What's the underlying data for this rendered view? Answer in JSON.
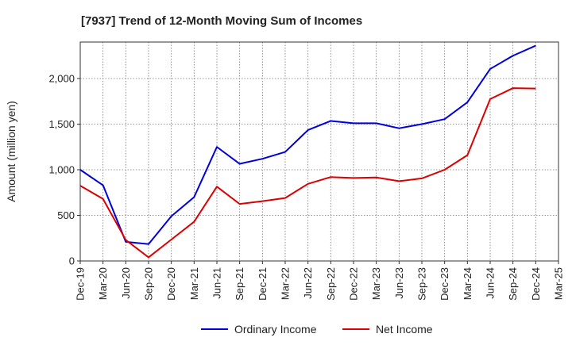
{
  "chart_data": {
    "type": "line",
    "title": "[7937]  Trend of 12-Month Moving Sum of Incomes",
    "xlabel": "",
    "ylabel": "Amount (million yen)",
    "categories": [
      "Dec-19",
      "Mar-20",
      "Jun-20",
      "Sep-20",
      "Dec-20",
      "Mar-21",
      "Jun-21",
      "Sep-21",
      "Dec-21",
      "Mar-22",
      "Jun-22",
      "Sep-22",
      "Dec-22",
      "Mar-23",
      "Jun-23",
      "Sep-23",
      "Dec-23",
      "Mar-24",
      "Jun-24",
      "Sep-24",
      "Dec-24",
      "Mar-25"
    ],
    "ylim": [
      0,
      2400
    ],
    "yticks": [
      0,
      500,
      1000,
      1500,
      2000
    ],
    "ytick_labels": [
      "0",
      "500",
      "1,000",
      "1,500",
      "2,000"
    ],
    "grid": true,
    "legend_position": "bottom-center",
    "series": [
      {
        "name": "Ordinary Income",
        "color": "#0000dd",
        "values": [
          1000,
          830,
          210,
          185,
          490,
          700,
          1250,
          1065,
          1120,
          1195,
          1435,
          1535,
          1510,
          1510,
          1455,
          1500,
          1555,
          1740,
          2105,
          2250,
          2360,
          null
        ]
      },
      {
        "name": "Net Income",
        "color": "#dd0000",
        "values": [
          825,
          680,
          230,
          40,
          235,
          430,
          815,
          625,
          655,
          690,
          845,
          920,
          910,
          915,
          875,
          905,
          1000,
          1160,
          1775,
          1895,
          1890,
          null
        ]
      }
    ]
  }
}
